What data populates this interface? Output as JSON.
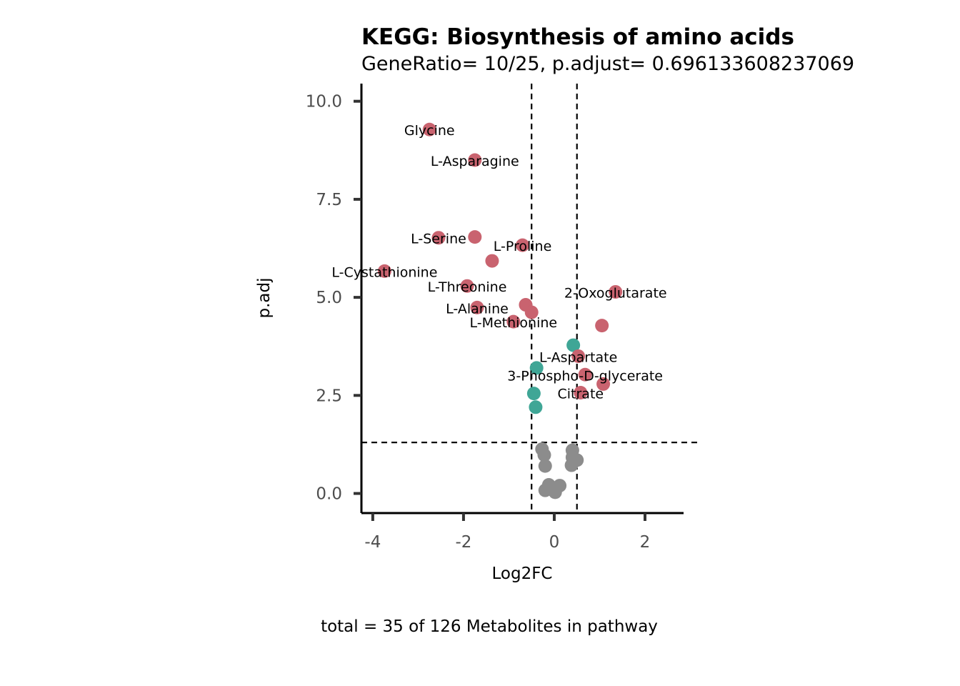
{
  "colors": {
    "down": "#c9636f",
    "up": "#3fa696",
    "ns": "#8c8c8c",
    "axis": "#000000",
    "tick": "#333333",
    "tick_label": "#4d4d4d"
  },
  "chart_data": {
    "type": "scatter",
    "title": "KEGG: Biosynthesis of amino acids",
    "subtitle": "GeneRatio= 10/25, p.adjust= 0.696133608237069",
    "xlabel": "Log2FC",
    "ylabel": "p.adj",
    "caption": "total = 35 of 126 Metabolites in pathway",
    "xlim": [
      -4.25,
      2.85
    ],
    "ylim": [
      -0.5,
      10.45
    ],
    "x_ticks": [
      -4,
      -2,
      0,
      2
    ],
    "x_tick_labels": [
      "-4",
      "-2",
      "0",
      "2"
    ],
    "y_ticks": [
      0,
      2.5,
      5,
      7.5,
      10
    ],
    "y_tick_labels": [
      "0.0",
      "2.5",
      "5.0",
      "7.5",
      "10.0"
    ],
    "vlines": [
      -0.5,
      0.5
    ],
    "hline": 1.3,
    "grid": false,
    "legend": "none",
    "points": [
      {
        "x": -2.75,
        "y": 9.28,
        "group": "down",
        "label": "Glycine"
      },
      {
        "x": -1.75,
        "y": 8.5,
        "group": "down",
        "label": "L-Asparagine"
      },
      {
        "x": -2.55,
        "y": 6.52,
        "group": "down",
        "label": "L-Serine"
      },
      {
        "x": -1.75,
        "y": 6.54,
        "group": "down",
        "label": ""
      },
      {
        "x": -0.7,
        "y": 6.33,
        "group": "down",
        "label": "L-Proline"
      },
      {
        "x": -1.37,
        "y": 5.93,
        "group": "down",
        "label": ""
      },
      {
        "x": -3.74,
        "y": 5.67,
        "group": "down",
        "label": "L-Cystathionine"
      },
      {
        "x": -1.92,
        "y": 5.29,
        "group": "down",
        "label": "L-Threonine"
      },
      {
        "x": 1.35,
        "y": 5.14,
        "group": "down",
        "label": "2-Oxoglutarate"
      },
      {
        "x": -0.63,
        "y": 4.81,
        "group": "down",
        "label": ""
      },
      {
        "x": -1.7,
        "y": 4.74,
        "group": "down",
        "label": "L-Alanine"
      },
      {
        "x": -0.5,
        "y": 4.62,
        "group": "down",
        "label": ""
      },
      {
        "x": -0.9,
        "y": 4.38,
        "group": "down",
        "label": "L-Methionine"
      },
      {
        "x": 1.05,
        "y": 4.28,
        "group": "down",
        "label": ""
      },
      {
        "x": 0.42,
        "y": 3.78,
        "group": "up",
        "label": ""
      },
      {
        "x": 0.53,
        "y": 3.5,
        "group": "down",
        "label": "L-Aspartate"
      },
      {
        "x": -0.39,
        "y": 3.2,
        "group": "up",
        "label": ""
      },
      {
        "x": 0.68,
        "y": 3.03,
        "group": "down",
        "label": "3-Phospho-D-glycerate"
      },
      {
        "x": 1.08,
        "y": 2.79,
        "group": "down",
        "label": ""
      },
      {
        "x": 0.58,
        "y": 2.57,
        "group": "down",
        "label": "Citrate"
      },
      {
        "x": -0.45,
        "y": 2.55,
        "group": "up",
        "label": ""
      },
      {
        "x": -0.41,
        "y": 2.2,
        "group": "up",
        "label": ""
      },
      {
        "x": -0.27,
        "y": 1.13,
        "group": "ns",
        "label": ""
      },
      {
        "x": 0.4,
        "y": 1.1,
        "group": "ns",
        "label": ""
      },
      {
        "x": -0.22,
        "y": 0.98,
        "group": "ns",
        "label": ""
      },
      {
        "x": 0.4,
        "y": 0.92,
        "group": "ns",
        "label": ""
      },
      {
        "x": 0.5,
        "y": 0.85,
        "group": "ns",
        "label": ""
      },
      {
        "x": -0.2,
        "y": 0.7,
        "group": "ns",
        "label": ""
      },
      {
        "x": 0.38,
        "y": 0.72,
        "group": "ns",
        "label": ""
      },
      {
        "x": -0.12,
        "y": 0.22,
        "group": "ns",
        "label": ""
      },
      {
        "x": 0.12,
        "y": 0.2,
        "group": "ns",
        "label": ""
      },
      {
        "x": -0.2,
        "y": 0.08,
        "group": "ns",
        "label": ""
      },
      {
        "x": -0.05,
        "y": 0.1,
        "group": "ns",
        "label": ""
      },
      {
        "x": 0.02,
        "y": 0.03,
        "group": "ns",
        "label": ""
      },
      {
        "x": -0.1,
        "y": 0.15,
        "group": "ns",
        "label": ""
      }
    ]
  }
}
